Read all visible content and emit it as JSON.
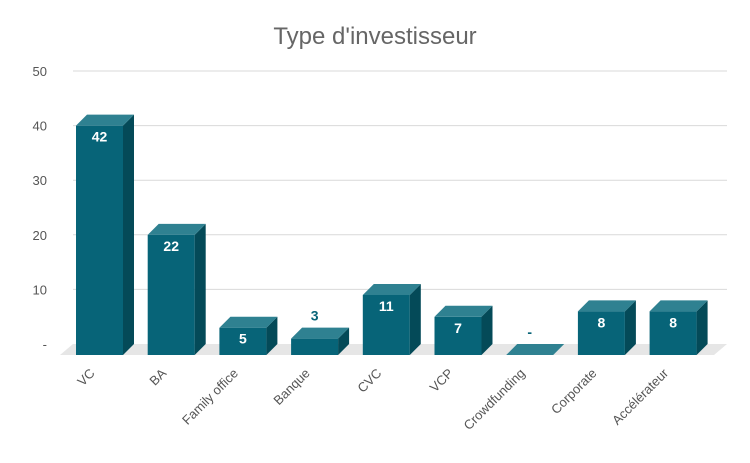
{
  "chart_data": {
    "type": "bar",
    "title": "Type d'investisseur",
    "categories": [
      "VC",
      "BA",
      "Family office",
      "Banque",
      "CVC",
      "VCP",
      "Crowdfunding",
      "Corporate",
      "Accélérateur"
    ],
    "values": [
      42,
      22,
      5,
      3,
      11,
      7,
      0,
      8,
      8
    ],
    "data_labels": [
      "42",
      "22",
      "5",
      "3",
      "11",
      "7",
      "-",
      "8",
      "8"
    ],
    "yticks": [
      "-",
      "10",
      "20",
      "30",
      "40",
      "50"
    ],
    "ylim": [
      0,
      50
    ],
    "grid": true,
    "legend": "none",
    "bar_style": "3d",
    "colors": {
      "bar_front": "#076478",
      "bar_top": "#2f8191",
      "bar_side": "#044a58",
      "floor": "#e6e6e6",
      "grid": "#d9d9d9",
      "label_inside": "#ffffff",
      "label_outside": "#076478"
    }
  }
}
